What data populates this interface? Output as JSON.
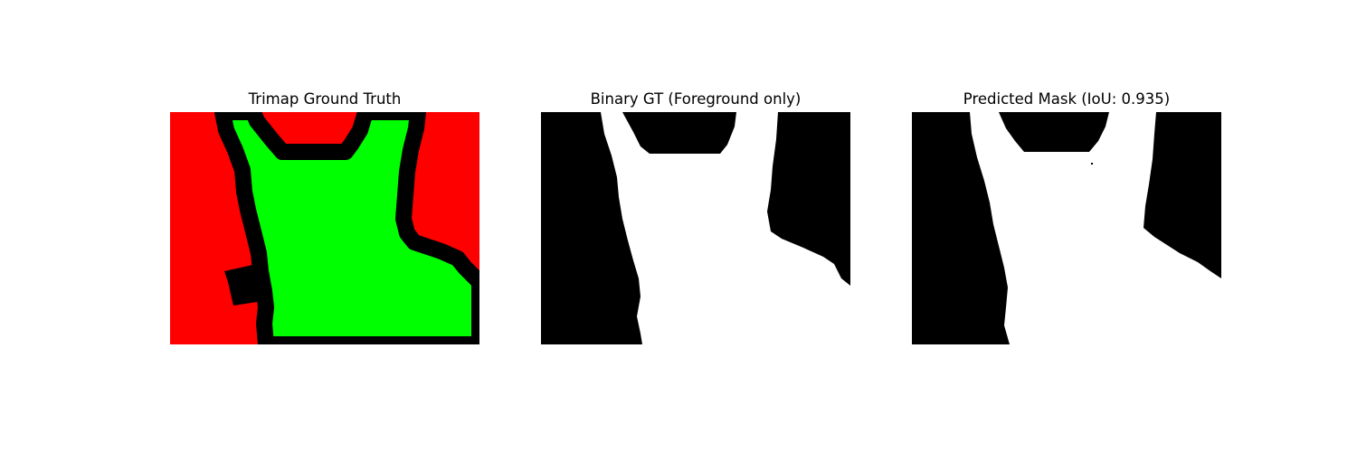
{
  "figure": {
    "panels": [
      {
        "title": "Trimap Ground Truth",
        "colors": {
          "background": "#ff0000",
          "foreground": "#00ff00",
          "boundary": "#000000"
        }
      },
      {
        "title": "Binary GT (Foreground only)",
        "colors": {
          "background": "#000000",
          "foreground": "#ffffff"
        }
      },
      {
        "title": "Predicted Mask (IoU: 0.935)",
        "colors": {
          "background": "#000000",
          "foreground": "#ffffff"
        }
      }
    ]
  }
}
